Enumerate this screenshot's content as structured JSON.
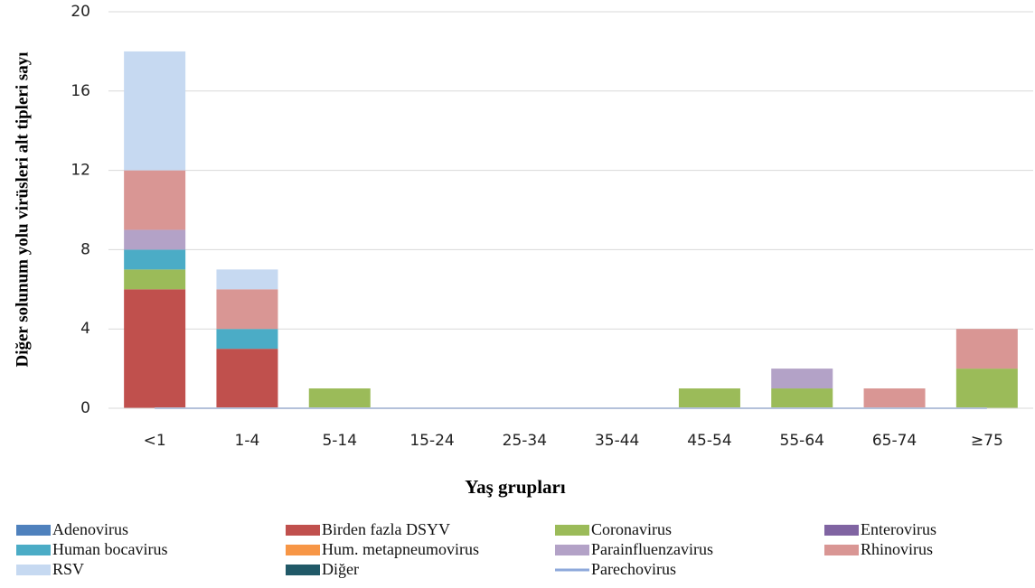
{
  "chart_data": {
    "type": "stacked_bar",
    "y_label": "Diğer solunum yolu virüsleri alt tipleri sayı",
    "x_label": "Yaş grupları",
    "categories": [
      "<1",
      "1-4",
      "5-14",
      "15-24",
      "25-34",
      "35-44",
      "45-54",
      "55-64",
      "65-74",
      "≥75"
    ],
    "ylim": [
      0,
      20
    ],
    "yticks": [
      0,
      4,
      8,
      12,
      16,
      20
    ],
    "grid": true,
    "series": [
      {
        "name": "Adenovirus",
        "color": "#4f81bd",
        "values": [
          0,
          0,
          0,
          0,
          0,
          0,
          0,
          0,
          0,
          0
        ]
      },
      {
        "name": "Birden fazla DSYV",
        "color": "#c0504d",
        "values": [
          6,
          3,
          0,
          0,
          0,
          0,
          0,
          0,
          0,
          0
        ]
      },
      {
        "name": "Coronavirus",
        "color": "#9bbb59",
        "values": [
          1,
          0,
          1,
          0,
          0,
          0,
          1,
          1,
          0,
          2
        ]
      },
      {
        "name": "Enterovirus",
        "color": "#8064a2",
        "values": [
          0,
          0,
          0,
          0,
          0,
          0,
          0,
          0,
          0,
          0
        ]
      },
      {
        "name": "Human bocavirus",
        "color": "#4bacc6",
        "values": [
          1,
          1,
          0,
          0,
          0,
          0,
          0,
          0,
          0,
          0
        ]
      },
      {
        "name": "Hum. metapneumovirus",
        "color": "#f79646",
        "values": [
          0,
          0,
          0,
          0,
          0,
          0,
          0,
          0,
          0,
          0
        ]
      },
      {
        "name": "Parainfluenzavirus",
        "color": "#b3a2c7",
        "values": [
          1,
          0,
          0,
          0,
          0,
          0,
          0,
          1,
          0,
          0
        ]
      },
      {
        "name": "Rhinovirus",
        "color": "#d99694",
        "values": [
          3,
          2,
          0,
          0,
          0,
          0,
          0,
          0,
          1,
          2
        ]
      },
      {
        "name": "RSV",
        "color": "#c6d9f1",
        "values": [
          6,
          1,
          0,
          0,
          0,
          0,
          0,
          0,
          0,
          0
        ]
      },
      {
        "name": "Diğer",
        "color": "#215968",
        "values": [
          0,
          0,
          0,
          0,
          0,
          0,
          0,
          0,
          0,
          0
        ]
      },
      {
        "name": "Parechovirus",
        "color": "#8ea9db",
        "type": "line",
        "values": [
          0,
          0,
          0,
          0,
          0,
          0,
          0,
          0,
          0,
          0
        ]
      }
    ]
  }
}
